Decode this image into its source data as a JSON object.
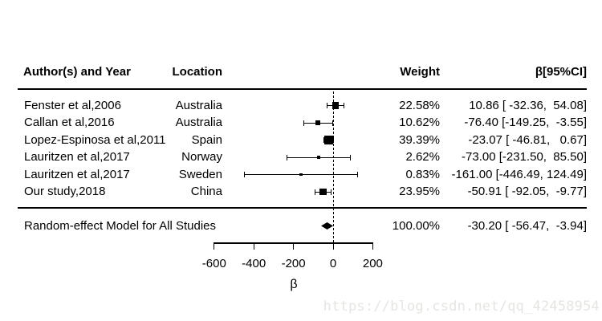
{
  "header": {
    "author": "Author(s) and Year",
    "location": "Location",
    "weight": "Weight",
    "effect": "β[95%CI]"
  },
  "chart_data": {
    "type": "forest",
    "title": "",
    "xlabel": "β",
    "xlim": [
      -600,
      200
    ],
    "x_ticks": [
      -600,
      -400,
      -200,
      0,
      200
    ],
    "x_tick_labels": [
      "-600",
      "-400",
      "-200",
      "0",
      "200"
    ],
    "zero_line_x": 0,
    "grid": false,
    "studies": [
      {
        "author": "Fenster et al,2006",
        "location": "Australia",
        "weight_label": "22.58%",
        "weight_pct": 22.58,
        "beta": 10.86,
        "ci_low": -32.36,
        "ci_high": 54.08,
        "effect_label": "10.86 [ -32.36,  54.08]"
      },
      {
        "author": "Callan et al,2016",
        "location": "Australia",
        "weight_label": "10.62%",
        "weight_pct": 10.62,
        "beta": -76.4,
        "ci_low": -149.25,
        "ci_high": -3.55,
        "effect_label": "-76.40 [-149.25,  -3.55]"
      },
      {
        "author": "Lopez-Espinosa et al,2011",
        "location": "Spain",
        "weight_label": "39.39%",
        "weight_pct": 39.39,
        "beta": -23.07,
        "ci_low": -46.81,
        "ci_high": 0.67,
        "effect_label": "-23.07 [ -46.81,   0.67]"
      },
      {
        "author": "Lauritzen et al,2017",
        "location": "Norway",
        "weight_label": "2.62%",
        "weight_pct": 2.62,
        "beta": -73.0,
        "ci_low": -231.5,
        "ci_high": 85.5,
        "effect_label": "-73.00 [-231.50,  85.50]"
      },
      {
        "author": "Lauritzen et al,2017",
        "location": "Sweden",
        "weight_label": "0.83%",
        "weight_pct": 0.83,
        "beta": -161.0,
        "ci_low": -446.49,
        "ci_high": 124.49,
        "effect_label": "-161.00 [-446.49, 124.49]"
      },
      {
        "author": "Our study,2018",
        "location": "China",
        "weight_label": "23.95%",
        "weight_pct": 23.95,
        "beta": -50.91,
        "ci_low": -92.05,
        "ci_high": -9.77,
        "effect_label": "-50.91 [ -92.05,  -9.77]"
      }
    ],
    "summary": {
      "label": "Random-effect Model for All Studies",
      "weight_label": "100.00%",
      "beta": -30.2,
      "ci_low": -56.47,
      "ci_high": -3.94,
      "effect_label": "-30.20 [ -56.47,  -3.94]"
    }
  },
  "watermark": {
    "text": "https://blog.csdn.net/qq_42458954",
    "color": "#e5e5e1"
  },
  "colors": {
    "background": "#ffffff",
    "text": "#000000",
    "marker": "#000000"
  }
}
